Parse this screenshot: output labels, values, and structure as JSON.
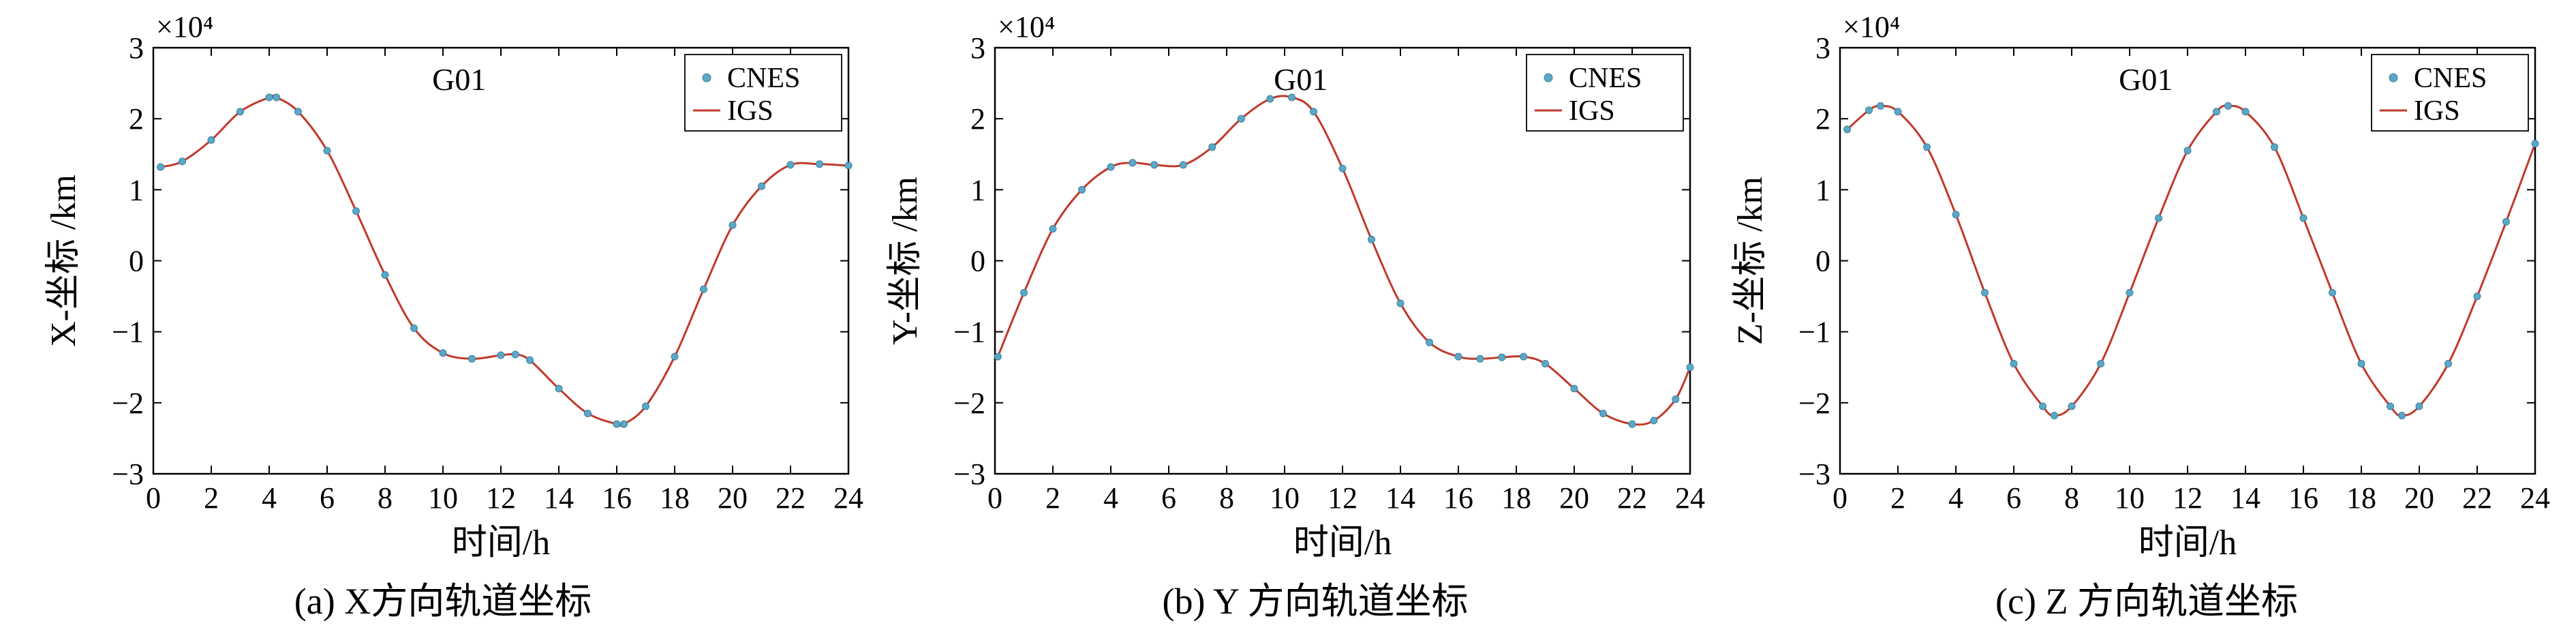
{
  "figure": {
    "captions": [
      "(a) X方向轨道坐标",
      "(b) Y 方向轨道坐标",
      "(c) Z 方向轨道坐标"
    ]
  },
  "colors": {
    "cnes_marker": "#5aa8c8",
    "igs_line": "#c0392b",
    "axis": "#000000"
  },
  "chart_data": [
    {
      "type": "line",
      "title": "G01",
      "xlabel": "时间/h",
      "ylabel": "X-坐标 /km",
      "y_scale_label": "×10⁴",
      "xlim": [
        0,
        24
      ],
      "ylim": [
        -3,
        3
      ],
      "x_ticks": [
        0,
        2,
        4,
        6,
        8,
        10,
        12,
        14,
        16,
        18,
        20,
        22,
        24
      ],
      "y_ticks": [
        -3,
        -2,
        -1,
        0,
        1,
        2,
        3
      ],
      "x_tick_labels": [
        "0",
        "2",
        "4",
        "6",
        "8",
        "10",
        "12",
        "14",
        "16",
        "18",
        "20",
        "22",
        "24"
      ],
      "y_tick_labels": [
        "−3",
        "−2",
        "−1",
        "0",
        "1",
        "2",
        "3"
      ],
      "legend": {
        "position": "top-right",
        "entries": [
          "CNES",
          "IGS"
        ]
      },
      "x": [
        0.25,
        1,
        2,
        3,
        4,
        4.25,
        5,
        6,
        7,
        8,
        9,
        10,
        11,
        12,
        12.5,
        13,
        14,
        15,
        16,
        16.25,
        17,
        18,
        19,
        20,
        21,
        22,
        23,
        24
      ],
      "series": [
        {
          "name": "CNES",
          "values": [
            1.32,
            1.4,
            1.7,
            2.1,
            2.3,
            2.3,
            2.1,
            1.55,
            0.7,
            -0.2,
            -0.95,
            -1.3,
            -1.38,
            -1.33,
            -1.32,
            -1.4,
            -1.8,
            -2.15,
            -2.3,
            -2.3,
            -2.05,
            -1.35,
            -0.4,
            0.5,
            1.05,
            1.35,
            1.36,
            1.34
          ]
        },
        {
          "name": "IGS",
          "values": [
            1.32,
            1.4,
            1.7,
            2.1,
            2.3,
            2.3,
            2.1,
            1.55,
            0.7,
            -0.2,
            -0.95,
            -1.3,
            -1.38,
            -1.33,
            -1.32,
            -1.4,
            -1.8,
            -2.15,
            -2.3,
            -2.3,
            -2.05,
            -1.35,
            -0.4,
            0.5,
            1.05,
            1.35,
            1.36,
            1.34
          ]
        }
      ]
    },
    {
      "type": "line",
      "title": "G01",
      "xlabel": "时间/h",
      "ylabel": "Y-坐标 /km",
      "y_scale_label": "×10⁴",
      "xlim": [
        0,
        24
      ],
      "ylim": [
        -3,
        3
      ],
      "x_ticks": [
        0,
        2,
        4,
        6,
        8,
        10,
        12,
        14,
        16,
        18,
        20,
        22,
        24
      ],
      "y_ticks": [
        -3,
        -2,
        -1,
        0,
        1,
        2,
        3
      ],
      "x_tick_labels": [
        "0",
        "2",
        "4",
        "6",
        "8",
        "10",
        "12",
        "14",
        "16",
        "18",
        "20",
        "22",
        "24"
      ],
      "y_tick_labels": [
        "−3",
        "−2",
        "−1",
        "0",
        "1",
        "2",
        "3"
      ],
      "legend": {
        "position": "top-right",
        "entries": [
          "CNES",
          "IGS"
        ]
      },
      "x": [
        0.1,
        1,
        2,
        3,
        4,
        4.75,
        5.5,
        6.5,
        7.5,
        8.5,
        9.5,
        10.25,
        11,
        12,
        13,
        14,
        15,
        16,
        16.75,
        17.5,
        18.25,
        19,
        20,
        21,
        22,
        22.75,
        23.5,
        24
      ],
      "series": [
        {
          "name": "CNES",
          "values": [
            -1.35,
            -0.45,
            0.45,
            1.0,
            1.32,
            1.38,
            1.35,
            1.35,
            1.6,
            2.0,
            2.28,
            2.3,
            2.1,
            1.3,
            0.3,
            -0.6,
            -1.15,
            -1.35,
            -1.38,
            -1.36,
            -1.35,
            -1.45,
            -1.8,
            -2.15,
            -2.3,
            -2.25,
            -1.95,
            -1.5
          ]
        },
        {
          "name": "IGS",
          "values": [
            -1.35,
            -0.45,
            0.45,
            1.0,
            1.32,
            1.38,
            1.35,
            1.35,
            1.6,
            2.0,
            2.28,
            2.3,
            2.1,
            1.3,
            0.3,
            -0.6,
            -1.15,
            -1.35,
            -1.38,
            -1.36,
            -1.35,
            -1.45,
            -1.8,
            -2.15,
            -2.3,
            -2.25,
            -1.95,
            -1.5
          ]
        }
      ]
    },
    {
      "type": "line",
      "title": "G01",
      "xlabel": "时间/h",
      "ylabel": "Z-坐标 /km",
      "y_scale_label": "×10⁴",
      "xlim": [
        0,
        24
      ],
      "ylim": [
        -3,
        3
      ],
      "x_ticks": [
        0,
        2,
        4,
        6,
        8,
        10,
        12,
        14,
        16,
        18,
        20,
        22,
        24
      ],
      "y_ticks": [
        -3,
        -2,
        -1,
        0,
        1,
        2,
        3
      ],
      "x_tick_labels": [
        "0",
        "2",
        "4",
        "6",
        "8",
        "10",
        "12",
        "14",
        "16",
        "18",
        "20",
        "22",
        "24"
      ],
      "y_tick_labels": [
        "−3",
        "−2",
        "−1",
        "0",
        "1",
        "2",
        "3"
      ],
      "legend": {
        "position": "top-right",
        "entries": [
          "CNES",
          "IGS"
        ]
      },
      "x": [
        0.25,
        1,
        1.4,
        2,
        3,
        4,
        5,
        6,
        7,
        7.4,
        8,
        9,
        10,
        11,
        12,
        13,
        13.4,
        14,
        15,
        16,
        17,
        18,
        19,
        19.4,
        20,
        21,
        22,
        23,
        24
      ],
      "series": [
        {
          "name": "CNES",
          "values": [
            1.85,
            2.12,
            2.18,
            2.1,
            1.6,
            0.65,
            -0.45,
            -1.45,
            -2.05,
            -2.18,
            -2.05,
            -1.45,
            -0.45,
            0.6,
            1.55,
            2.1,
            2.18,
            2.1,
            1.6,
            0.6,
            -0.45,
            -1.45,
            -2.05,
            -2.18,
            -2.05,
            -1.45,
            -0.5,
            0.55,
            1.65
          ]
        },
        {
          "name": "IGS",
          "values": [
            1.85,
            2.12,
            2.18,
            2.1,
            1.6,
            0.65,
            -0.45,
            -1.45,
            -2.05,
            -2.18,
            -2.05,
            -1.45,
            -0.45,
            0.6,
            1.55,
            2.1,
            2.18,
            2.1,
            1.6,
            0.6,
            -0.45,
            -1.45,
            -2.05,
            -2.18,
            -2.05,
            -1.45,
            -0.5,
            0.55,
            1.65
          ]
        }
      ]
    }
  ]
}
